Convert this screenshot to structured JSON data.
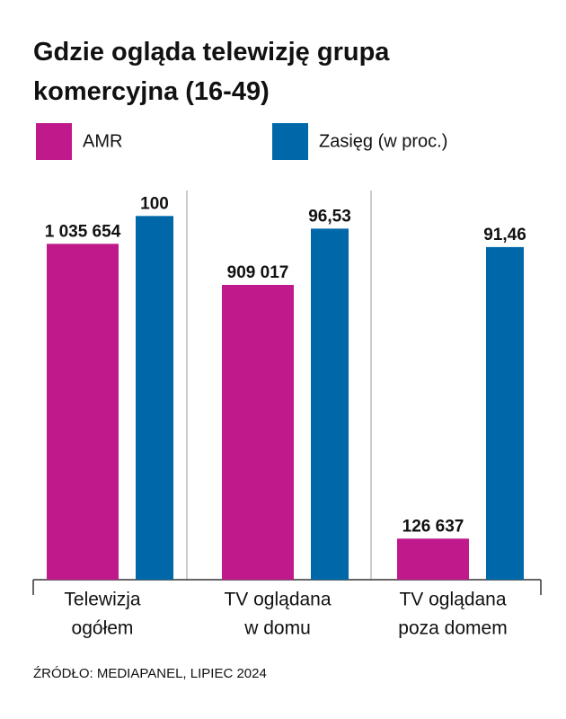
{
  "chart_data": {
    "type": "bar",
    "title": "Gdzie ogląda telewizję grupa komercyjna (16-49)",
    "categories": [
      [
        "Telewizja",
        "ogółem"
      ],
      [
        "TV oglądana",
        "w domu"
      ],
      [
        "TV oglądana",
        "poza domem"
      ]
    ],
    "series": [
      {
        "name": "AMR",
        "color": "#c0198c",
        "values": [
          1035654,
          909017,
          126637
        ],
        "value_labels": [
          "1 035 654",
          "909 017",
          "126 637"
        ]
      },
      {
        "name": "Zasięg (w proc.)",
        "color": "#0068a8",
        "axis": "y2",
        "values": [
          100,
          96.53,
          91.46
        ],
        "value_labels": [
          "100",
          "96,53",
          "91,46"
        ]
      }
    ],
    "ylim": [
      0,
      1200000
    ],
    "y2lim": [
      0,
      107
    ],
    "source": "ŹRÓDŁO: MEDIAPANEL, LIPIEC 2024"
  }
}
